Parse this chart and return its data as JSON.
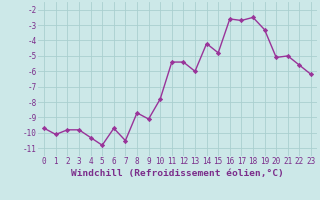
{
  "x": [
    0,
    1,
    2,
    3,
    4,
    5,
    6,
    7,
    8,
    9,
    10,
    11,
    12,
    13,
    14,
    15,
    16,
    17,
    18,
    19,
    20,
    21,
    22,
    23
  ],
  "y": [
    -9.7,
    -10.1,
    -9.8,
    -9.8,
    -10.3,
    -10.8,
    -9.7,
    -10.5,
    -8.7,
    -9.1,
    -7.8,
    -5.4,
    -5.4,
    -6.0,
    -4.2,
    -4.8,
    -2.6,
    -2.7,
    -2.5,
    -3.3,
    -5.1,
    -5.0,
    -5.6,
    -6.2
  ],
  "line_color": "#993399",
  "marker": "D",
  "markersize": 2.2,
  "linewidth": 1.0,
  "xlabel": "Windchill (Refroidissement éolien,°C)",
  "xlim": [
    -0.5,
    23.5
  ],
  "ylim": [
    -11.5,
    -1.5
  ],
  "yticks": [
    -11,
    -10,
    -9,
    -8,
    -7,
    -6,
    -5,
    -4,
    -3,
    -2
  ],
  "xticks": [
    0,
    1,
    2,
    3,
    4,
    5,
    6,
    7,
    8,
    9,
    10,
    11,
    12,
    13,
    14,
    15,
    16,
    17,
    18,
    19,
    20,
    21,
    22,
    23
  ],
  "grid_color": "#aacfcf",
  "background_color": "#cce8e8",
  "tick_color": "#7b2d8b",
  "tick_fontsize": 5.5,
  "xlabel_fontsize": 6.8,
  "xlabel_color": "#7b2d8b"
}
